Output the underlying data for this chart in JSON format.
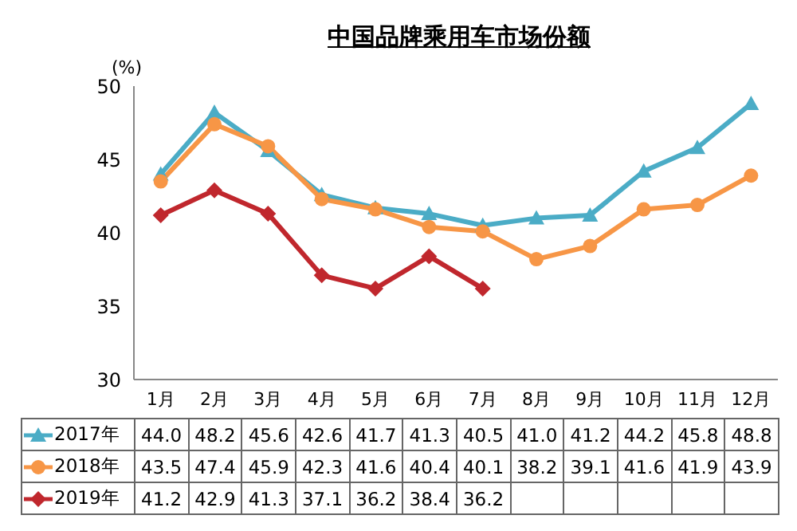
{
  "chart_data": {
    "type": "line",
    "title": "中国品牌乘用车市场份额",
    "ylabel": "(%)",
    "categories": [
      "1月",
      "2月",
      "3月",
      "4月",
      "5月",
      "6月",
      "7月",
      "8月",
      "9月",
      "10月",
      "11月",
      "12月"
    ],
    "series": [
      {
        "name": "2017年",
        "color": "#4bacc6",
        "marker": "triangle",
        "values": [
          44.0,
          48.2,
          45.6,
          42.6,
          41.7,
          41.3,
          40.5,
          41.0,
          41.2,
          44.2,
          45.8,
          48.8
        ],
        "value_labels": [
          "44.0",
          "48.2",
          "45.6",
          "42.6",
          "41.7",
          "41.3",
          "40.5",
          "41.0",
          "41.2",
          "44.2",
          "45.8",
          "48.8"
        ]
      },
      {
        "name": "2018年",
        "color": "#f79646",
        "marker": "circle",
        "values": [
          43.5,
          47.4,
          45.9,
          42.3,
          41.6,
          40.4,
          40.1,
          38.2,
          39.1,
          41.6,
          41.9,
          43.9
        ],
        "value_labels": [
          "43.5",
          "47.4",
          "45.9",
          "42.3",
          "41.6",
          "40.4",
          "40.1",
          "38.2",
          "39.1",
          "41.6",
          "41.9",
          "43.9"
        ]
      },
      {
        "name": "2019年",
        "color": "#c0272d",
        "marker": "diamond",
        "values": [
          41.2,
          42.9,
          41.3,
          37.1,
          36.2,
          38.4,
          36.2,
          null,
          null,
          null,
          null,
          null
        ],
        "value_labels": [
          "41.2",
          "42.9",
          "41.3",
          "37.1",
          "36.2",
          "38.4",
          "36.2",
          null,
          null,
          null,
          null,
          null
        ]
      }
    ],
    "ylim": [
      30,
      50
    ],
    "yticks": [
      30,
      35,
      40,
      45,
      50
    ],
    "legend": "bottom"
  }
}
